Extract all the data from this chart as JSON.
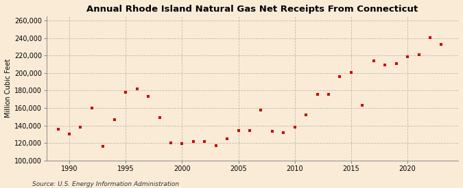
{
  "title": "Annual Rhode Island Natural Gas Net Receipts From Connecticut",
  "ylabel": "Million Cubic Feet",
  "source": "Source: U.S. Energy Information Administration",
  "background_color": "#faebd7",
  "plot_background_color": "#faebd7",
  "marker_color": "#cc0000",
  "marker": "s",
  "markersize": 3.5,
  "xlim": [
    1988.0,
    2024.5
  ],
  "ylim": [
    100000,
    265000
  ],
  "yticks": [
    100000,
    120000,
    140000,
    160000,
    180000,
    200000,
    220000,
    240000,
    260000
  ],
  "xticks": [
    1990,
    1995,
    2000,
    2005,
    2010,
    2015,
    2020
  ],
  "grid_color": "#bbbbaa",
  "years": [
    1989,
    1990,
    1991,
    1992,
    1993,
    1994,
    1995,
    1996,
    1997,
    1998,
    1999,
    2000,
    2001,
    2002,
    2003,
    2004,
    2005,
    2006,
    2007,
    2008,
    2009,
    2010,
    2011,
    2012,
    2013,
    2014,
    2015,
    2016,
    2017,
    2018,
    2019,
    2020,
    2021,
    2022,
    2023
  ],
  "values": [
    136000,
    130000,
    138000,
    160000,
    116000,
    147000,
    178000,
    182000,
    173000,
    149000,
    120000,
    119000,
    122000,
    122000,
    117000,
    125000,
    134000,
    134000,
    158000,
    133000,
    132000,
    138000,
    152000,
    176000,
    176000,
    196000,
    201000,
    163000,
    214000,
    209000,
    211000,
    219000,
    221000,
    241000,
    233000
  ]
}
